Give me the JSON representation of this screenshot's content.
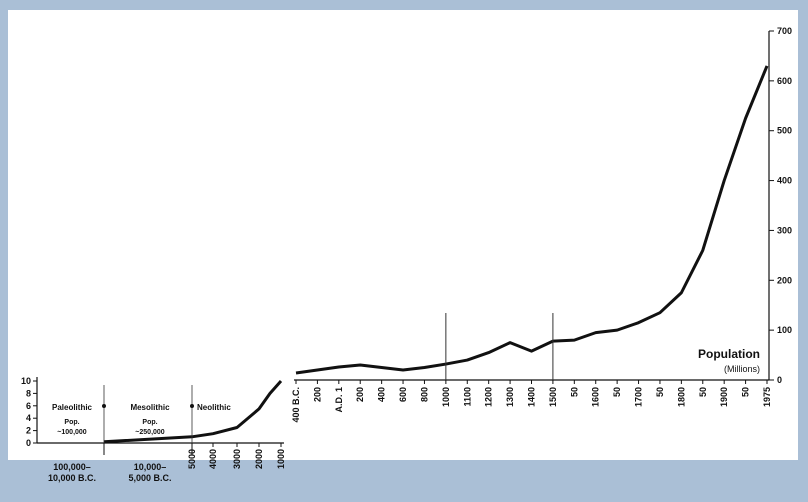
{
  "chart_data": [
    {
      "type": "area",
      "panel": "prehistoric",
      "ylim": [
        0,
        10
      ],
      "y_ticks": [
        "0",
        "2",
        "4",
        "6",
        "8",
        "10"
      ],
      "periods": [
        {
          "name": "Paleolithic",
          "pop_label": "Pop.",
          "pop_value": "~100,000",
          "x_label_1": "100,000–",
          "x_label_2": "10,000 B.C."
        },
        {
          "name": "Mesolithic",
          "pop_label": "Pop.",
          "pop_value": "~250,000",
          "x_label_1": "10,000–",
          "x_label_2": "5,000 B.C."
        },
        {
          "name": "Neolithic"
        }
      ],
      "x_ticks": [
        "5000",
        "4000",
        "3000",
        "2000",
        "1000"
      ],
      "series": [
        {
          "x": [
            "10,000",
            "5000",
            "4000",
            "3000",
            "2000",
            "1500",
            "1000"
          ],
          "values": [
            0.2,
            1.0,
            1.5,
            2.5,
            5.5,
            8.0,
            10.0
          ]
        }
      ]
    },
    {
      "type": "area",
      "panel": "historic",
      "ylim": [
        0,
        700
      ],
      "y_ticks": [
        "0",
        "100",
        "200",
        "300",
        "400",
        "500",
        "600",
        "700"
      ],
      "ylabel": "Population",
      "yunits": "(Millions)",
      "x_ticks": [
        "400 B.C.",
        "200",
        "A.D. 1",
        "200",
        "400",
        "600",
        "800",
        "1000",
        "1100",
        "1200",
        "1300",
        "1400",
        "1500",
        "50",
        "1600",
        "50",
        "1700",
        "50",
        "1800",
        "50",
        "1900",
        "50",
        "1975"
      ],
      "series": [
        {
          "values": [
            14,
            20,
            26,
            30,
            25,
            20,
            25,
            32,
            40,
            55,
            75,
            58,
            78,
            80,
            95,
            100,
            115,
            135,
            175,
            260,
            400,
            525,
            630
          ]
        }
      ]
    }
  ]
}
